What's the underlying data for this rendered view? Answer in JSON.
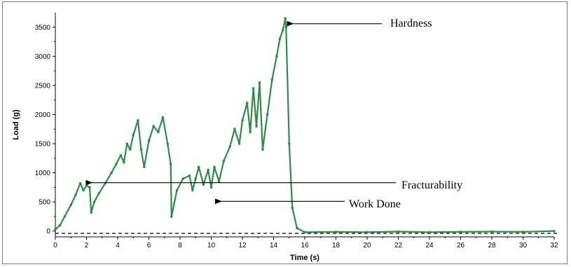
{
  "chart_data": {
    "type": "line",
    "xlabel": "Time (s)",
    "ylabel": "Load (g)",
    "xlim": [
      0,
      32
    ],
    "ylim": [
      -100,
      3750
    ],
    "x_ticks": [
      0,
      2,
      4,
      6,
      8,
      10,
      12,
      14,
      16,
      18,
      20,
      22,
      24,
      26,
      28,
      30,
      32
    ],
    "y_ticks": [
      0,
      500,
      1000,
      1500,
      2000,
      2500,
      3000,
      3500
    ],
    "baseline": -40,
    "grid": false,
    "legend": "none",
    "series": [
      {
        "color": "#2e8b4a",
        "points": [
          [
            0.0,
            30
          ],
          [
            0.3,
            100
          ],
          [
            0.6,
            250
          ],
          [
            1.0,
            450
          ],
          [
            1.3,
            620
          ],
          [
            1.6,
            820
          ],
          [
            1.8,
            700
          ],
          [
            2.0,
            780
          ],
          [
            2.2,
            750
          ],
          [
            2.3,
            320
          ],
          [
            2.5,
            500
          ],
          [
            2.8,
            650
          ],
          [
            3.2,
            820
          ],
          [
            3.6,
            1000
          ],
          [
            3.9,
            1150
          ],
          [
            4.2,
            1300
          ],
          [
            4.4,
            1180
          ],
          [
            4.6,
            1500
          ],
          [
            4.8,
            1400
          ],
          [
            5.0,
            1650
          ],
          [
            5.3,
            1900
          ],
          [
            5.5,
            1400
          ],
          [
            5.7,
            1100
          ],
          [
            6.0,
            1550
          ],
          [
            6.3,
            1800
          ],
          [
            6.6,
            1700
          ],
          [
            6.9,
            1950
          ],
          [
            7.2,
            1500
          ],
          [
            7.4,
            1150
          ],
          [
            7.45,
            250
          ],
          [
            7.8,
            700
          ],
          [
            8.2,
            900
          ],
          [
            8.6,
            950
          ],
          [
            8.8,
            700
          ],
          [
            9.0,
            900
          ],
          [
            9.2,
            1100
          ],
          [
            9.5,
            800
          ],
          [
            9.8,
            1050
          ],
          [
            10.0,
            750
          ],
          [
            10.2,
            1100
          ],
          [
            10.5,
            850
          ],
          [
            10.8,
            1200
          ],
          [
            11.2,
            1450
          ],
          [
            11.5,
            1750
          ],
          [
            11.8,
            1500
          ],
          [
            12.0,
            1900
          ],
          [
            12.3,
            2200
          ],
          [
            12.5,
            1700
          ],
          [
            12.7,
            2450
          ],
          [
            12.9,
            1800
          ],
          [
            13.1,
            2550
          ],
          [
            13.3,
            1400
          ],
          [
            13.6,
            2000
          ],
          [
            13.9,
            2600
          ],
          [
            14.2,
            3000
          ],
          [
            14.4,
            3300
          ],
          [
            14.6,
            3450
          ],
          [
            14.75,
            3650
          ],
          [
            14.8,
            3500
          ],
          [
            15.0,
            1500
          ],
          [
            15.2,
            400
          ],
          [
            15.5,
            50
          ],
          [
            16.0,
            -20
          ],
          [
            18.0,
            -15
          ],
          [
            20.0,
            -20
          ],
          [
            22.0,
            -10
          ],
          [
            24.0,
            -20
          ],
          [
            26.0,
            -15
          ],
          [
            28.0,
            -10
          ],
          [
            30.0,
            -15
          ],
          [
            32.0,
            0
          ]
        ]
      }
    ],
    "annotations": [
      {
        "text": "Hardness",
        "arrow_to": [
          14.8,
          3560
        ]
      },
      {
        "text": "Fracturability",
        "arrow_to": [
          1.9,
          830
        ]
      },
      {
        "text": "Work Done",
        "arrow_to": [
          10.2,
          510
        ]
      }
    ]
  }
}
